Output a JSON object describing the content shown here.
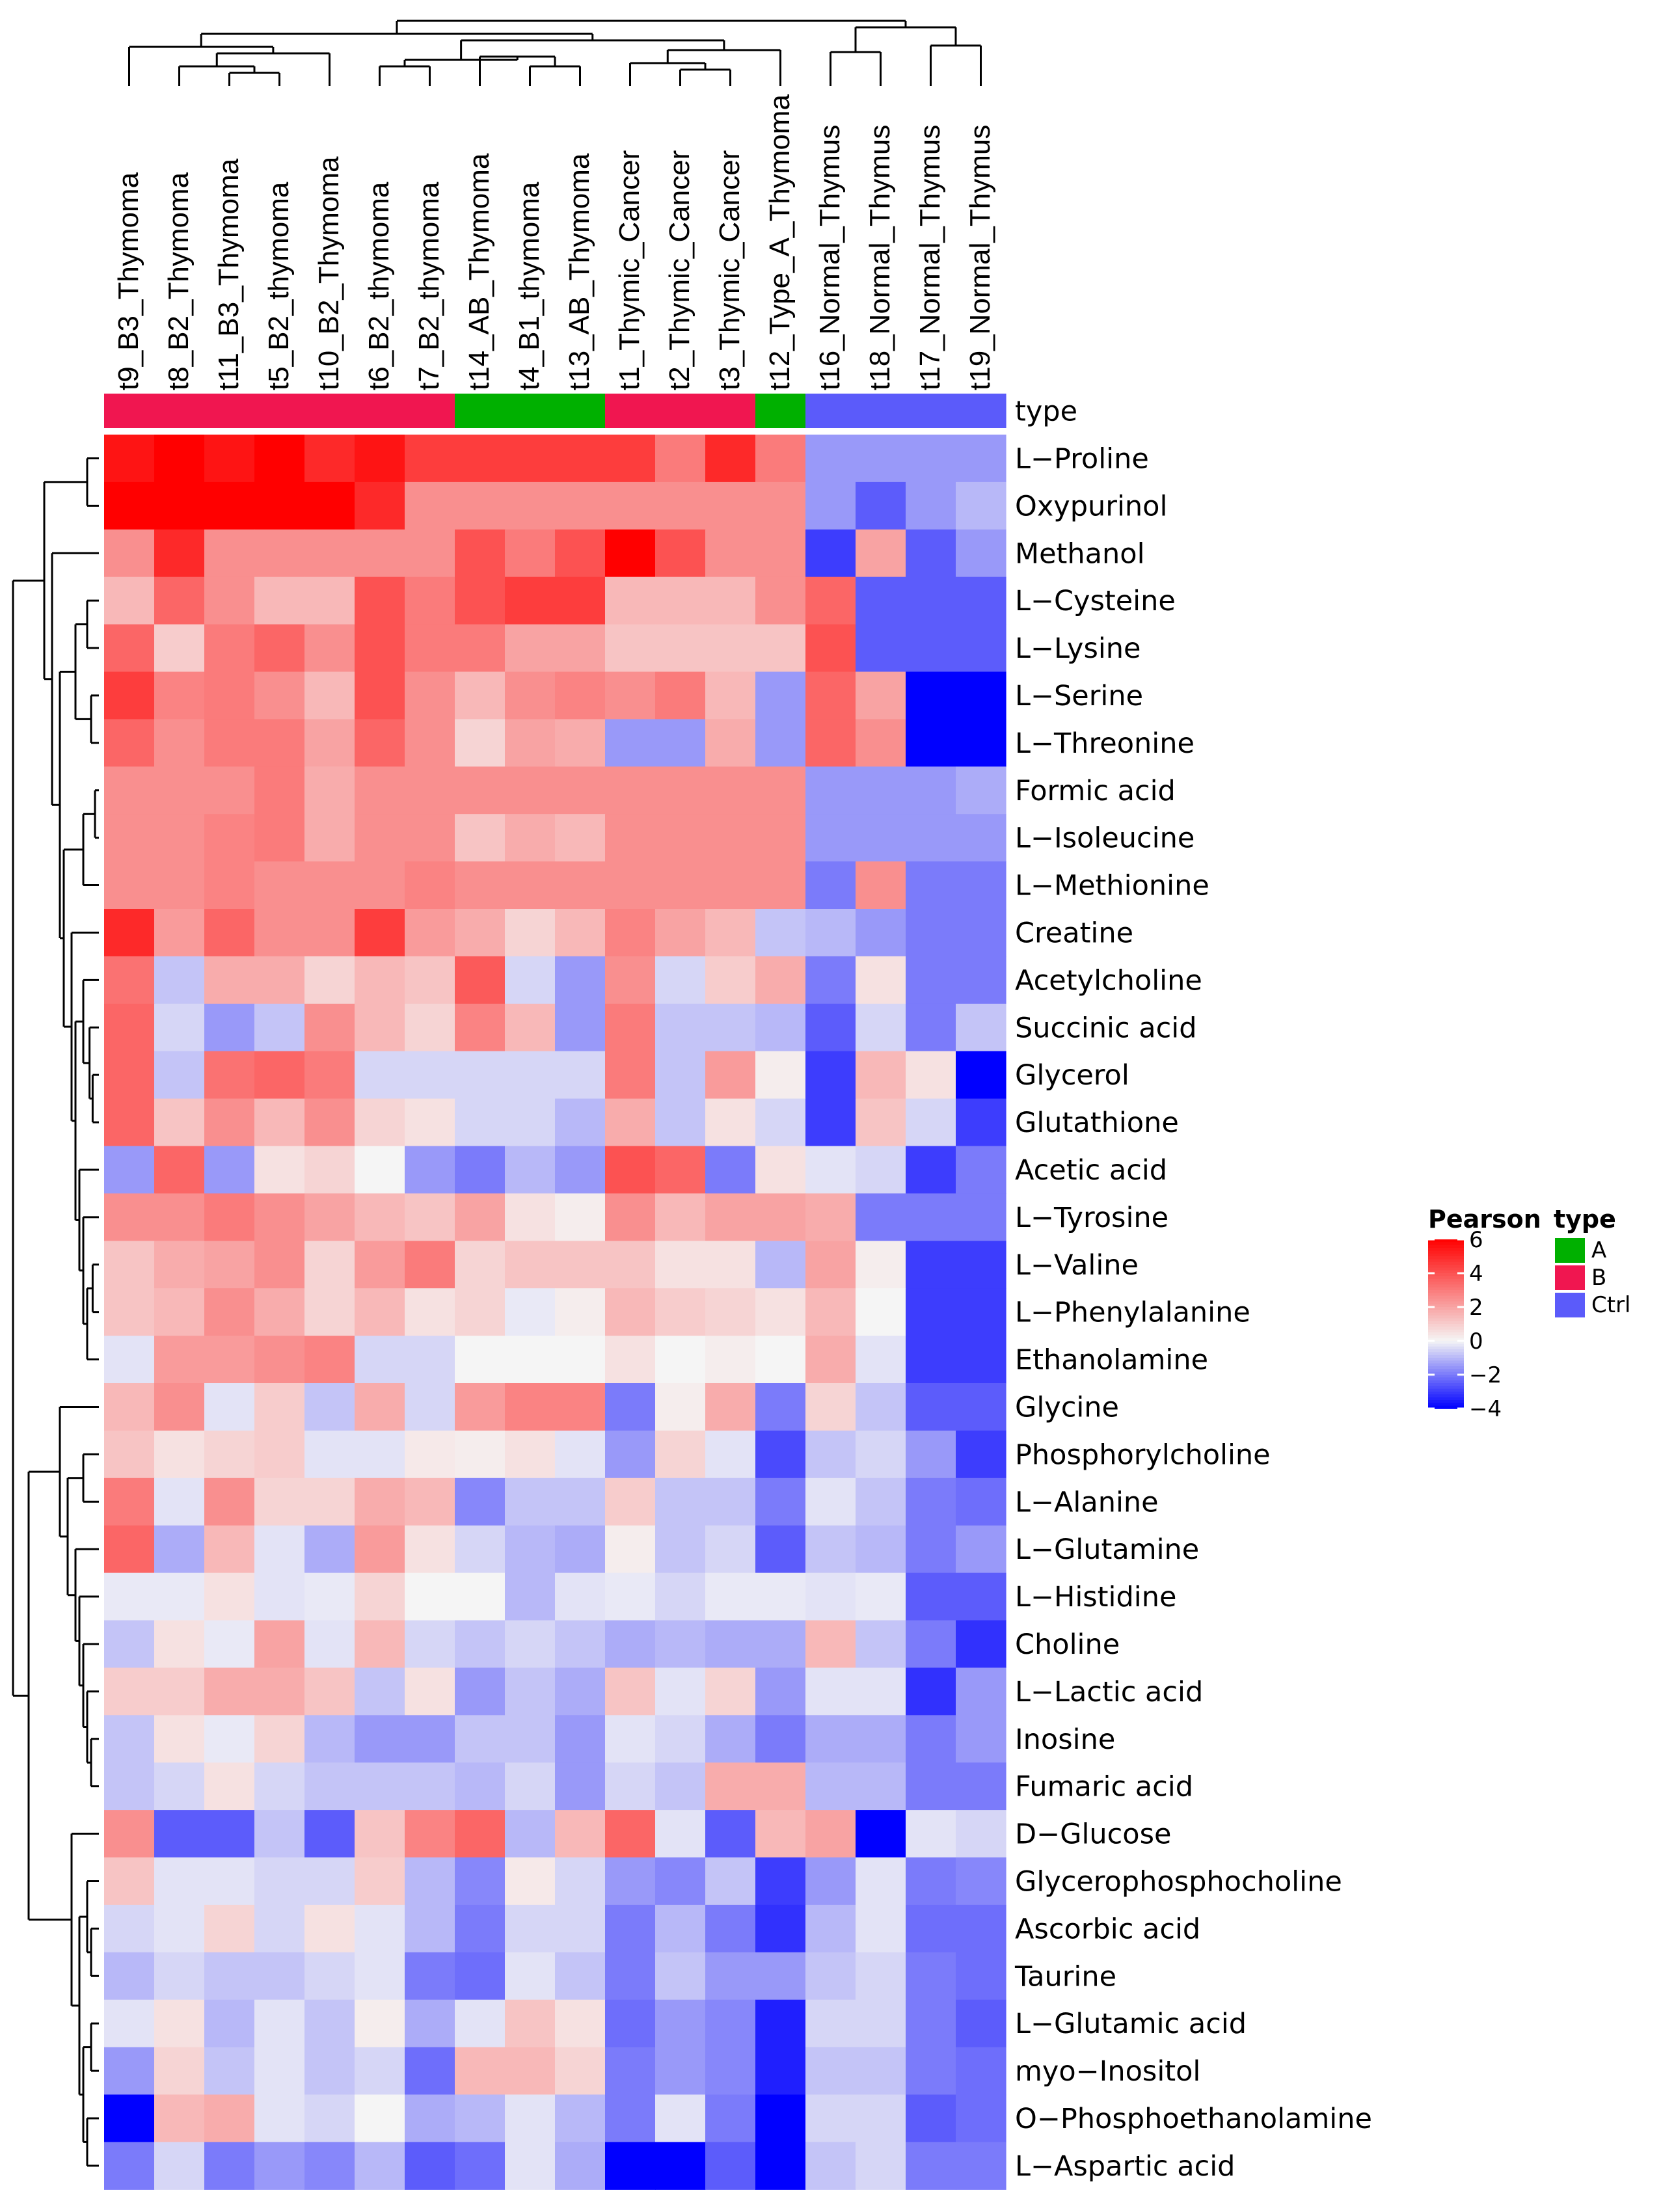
{
  "chart_data": {
    "type": "heatmap",
    "title": "",
    "columns": [
      "t9_B3_Thymoma",
      "t8_B2_Thymoma",
      "t11_B3_Thymoma",
      "t5_B2_thymoma",
      "t10_B2_Thymoma",
      "t6_B2_thymoma",
      "t7_B2_thymoma",
      "t14_AB_Thymoma",
      "t4_B1_thymoma",
      "t13_AB_Thymoma",
      "t1_Thymic_Cancer",
      "t2_Thymic_Cancer",
      "t3_Thymic_Cancer",
      "t12_Type_A_Thymoma",
      "t16_Normal_Thymus",
      "t18_Normal_Thymus",
      "t17_Normal_Thymus",
      "t19_Normal_Thymus"
    ],
    "column_types": [
      "B",
      "B",
      "B",
      "B",
      "B",
      "B",
      "B",
      "A",
      "A",
      "A",
      "B",
      "B",
      "B",
      "A",
      "Ctrl",
      "Ctrl",
      "Ctrl",
      "Ctrl"
    ],
    "annotation_label": "type",
    "rows": [
      "L−Proline",
      "Oxypurinol",
      "Methanol",
      "L−Cysteine",
      "L−Lysine",
      "L−Serine",
      "L−Threonine",
      "Formic acid",
      "L−Isoleucine",
      "L−Methionine",
      "Creatine",
      "Acetylcholine",
      "Succinic acid",
      "Glycerol",
      "Glutathione",
      "Acetic acid",
      "L−Tyrosine",
      "L−Valine",
      "L−Phenylalanine",
      "Ethanolamine",
      "Glycine",
      "Phosphorylcholine",
      "L−Alanine",
      "L−Glutamine",
      "L−Histidine",
      "Choline",
      "L−Lactic acid",
      "Inosine",
      "Fumaric acid",
      "D−Glucose",
      "Glycerophosphocholine",
      "Ascorbic acid",
      "Taurine",
      "L−Glutamic acid",
      "myo−Inositol",
      "O−Phosphoethanolamine",
      "L−Aspartic acid"
    ],
    "values": [
      [
        5.5,
        6,
        5.5,
        6,
        5,
        5.5,
        4.5,
        4.5,
        4.5,
        4.5,
        4.5,
        3,
        5,
        3,
        -1.5,
        -1.5,
        -1.5,
        -1.5
      ],
      [
        6,
        6,
        6,
        6,
        6,
        5,
        2.5,
        2.5,
        2.5,
        2.5,
        2.5,
        2.5,
        2.5,
        2.5,
        -1.5,
        -2.5,
        -1.5,
        -1
      ],
      [
        2.5,
        5,
        2.5,
        2.5,
        2.5,
        2.5,
        2.5,
        4,
        3,
        4,
        6,
        4,
        2.5,
        2.5,
        -3,
        2,
        -2.5,
        -1.5
      ],
      [
        1.5,
        3.5,
        2.5,
        1.5,
        1.5,
        4,
        3,
        4,
        4.5,
        4.5,
        1.5,
        1.5,
        1.5,
        2.5,
        3.5,
        -2.5,
        -2.5,
        -2.5
      ],
      [
        3.5,
        1,
        3,
        3.5,
        2.5,
        4,
        3,
        3,
        2,
        2,
        1.2,
        1.2,
        1.2,
        1.2,
        4,
        -2.5,
        -2.5,
        -2.5
      ],
      [
        4.5,
        2.8,
        3,
        2.5,
        1.5,
        4,
        2.5,
        1.5,
        2.5,
        2.8,
        2.5,
        3,
        1.5,
        -1.5,
        3.5,
        2,
        -4,
        -4
      ],
      [
        3.5,
        2.5,
        3,
        3,
        2,
        3.5,
        2.5,
        0.8,
        2,
        1.8,
        -1.5,
        -1.5,
        1.8,
        -1.5,
        3.5,
        2.5,
        -4,
        -4
      ],
      [
        2.5,
        2.5,
        2.5,
        3,
        1.8,
        2.5,
        2.5,
        2.5,
        2.5,
        2.5,
        2.5,
        2.5,
        2.5,
        2.5,
        -1.5,
        -1.5,
        -1.5,
        -1.2
      ],
      [
        2.5,
        2.5,
        2.8,
        3,
        1.8,
        2.5,
        2.5,
        1.2,
        1.8,
        1.5,
        2.5,
        2.5,
        2.5,
        2.5,
        -1.5,
        -1.5,
        -1.5,
        -1.5
      ],
      [
        2.5,
        2.5,
        2.8,
        2.5,
        2.5,
        2.5,
        2.8,
        2.5,
        2.5,
        2.5,
        2.5,
        2.5,
        2.5,
        2.5,
        -2,
        2.5,
        -2,
        -2
      ],
      [
        5,
        2.2,
        3.5,
        2.5,
        2.5,
        4.5,
        2.2,
        1.8,
        0.8,
        1.5,
        2.8,
        2,
        1.5,
        -0.8,
        -1,
        -1.5,
        -2,
        -2
      ],
      [
        3.2,
        -0.8,
        1.8,
        1.8,
        0.8,
        1.5,
        1.2,
        3.8,
        -0.5,
        -1.5,
        2.5,
        -0.5,
        1,
        1.8,
        -2,
        0.5,
        -2,
        -2
      ],
      [
        3.5,
        -0.5,
        -1.5,
        -0.8,
        2.5,
        1.5,
        0.8,
        2.8,
        1.5,
        -1.5,
        3,
        -0.8,
        -0.8,
        -1,
        -2.5,
        -0.5,
        -2,
        -0.8
      ],
      [
        3.5,
        -0.8,
        3.2,
        3.5,
        3,
        -0.5,
        -0.5,
        -0.5,
        -0.5,
        -0.5,
        3,
        -0.8,
        2.2,
        0.2,
        -3,
        1.5,
        0.5,
        -4
      ],
      [
        3.5,
        1.2,
        2.5,
        1.5,
        2.5,
        0.8,
        0.5,
        -0.5,
        -0.5,
        -1,
        1.8,
        -0.8,
        0.5,
        -0.5,
        -3,
        1.2,
        -0.5,
        -3
      ],
      [
        -1.5,
        3.5,
        -1.5,
        0.5,
        0.8,
        0,
        -1.5,
        -2,
        -1,
        -1.5,
        4,
        3.5,
        -2,
        0.5,
        -0.3,
        -0.5,
        -3,
        -2
      ],
      [
        2.5,
        2.5,
        3,
        2.5,
        2,
        1.5,
        1.2,
        2,
        0.5,
        0.2,
        2.5,
        1.5,
        2,
        2,
        1.8,
        -2,
        -2,
        -2
      ],
      [
        1.2,
        1.8,
        2,
        2.5,
        0.8,
        2.2,
        3,
        0.8,
        1.2,
        1.2,
        1.2,
        0.5,
        0.5,
        -1,
        2,
        0.2,
        -3,
        -3
      ],
      [
        1.2,
        1.5,
        2.5,
        1.8,
        0.8,
        1.5,
        0.5,
        0.8,
        -0.2,
        0.2,
        1.5,
        1,
        0.8,
        0.5,
        1.5,
        0,
        -3,
        -3
      ],
      [
        -0.3,
        2.2,
        2.2,
        2.5,
        2.8,
        -0.5,
        -0.5,
        0,
        0,
        0,
        0.5,
        0,
        0.2,
        0,
        1.8,
        -0.3,
        -3,
        -3
      ],
      [
        1.5,
        2.5,
        -0.3,
        1,
        -0.8,
        1.8,
        -0.5,
        2.2,
        2.8,
        2.8,
        -2,
        0.2,
        1.8,
        -2,
        0.8,
        -0.8,
        -2.5,
        -2.5
      ],
      [
        1.2,
        0.5,
        0.8,
        1,
        -0.3,
        -0.3,
        0.3,
        0.2,
        0.5,
        -0.3,
        -1.5,
        0.8,
        -0.3,
        -2.8,
        -0.8,
        -0.5,
        -1.5,
        -3
      ],
      [
        3,
        -0.3,
        2.5,
        0.8,
        0.8,
        1.8,
        1.5,
        -1.8,
        -0.8,
        -0.8,
        1,
        -0.8,
        -0.8,
        -2,
        -0.3,
        -0.8,
        -2,
        -2.2
      ],
      [
        3.5,
        -1.2,
        1.5,
        -0.3,
        -1.2,
        2.2,
        0.5,
        -0.5,
        -1,
        -1.2,
        0.2,
        -0.8,
        -0.5,
        -2.5,
        -0.8,
        -1,
        -2,
        -1.5
      ],
      [
        -0.2,
        -0.2,
        0.5,
        -0.3,
        -0.2,
        0.8,
        0,
        0,
        -1,
        -0.3,
        -0.2,
        -0.5,
        -0.2,
        -0.2,
        -0.3,
        -0.2,
        -2.5,
        -2.5
      ],
      [
        -0.8,
        0.5,
        -0.2,
        2,
        -0.3,
        1.5,
        -0.5,
        -0.8,
        -0.5,
        -0.8,
        -1.2,
        -1,
        -1.2,
        -1.2,
        1.5,
        -0.8,
        -2,
        -3.2
      ],
      [
        1,
        1,
        1.8,
        1.8,
        1.2,
        -0.8,
        0.5,
        -1.5,
        -0.8,
        -1.2,
        1.2,
        -0.3,
        0.8,
        -1.5,
        -0.3,
        -0.3,
        -3.2,
        -1.5
      ],
      [
        -0.8,
        0.5,
        -0.2,
        0.8,
        -1,
        -1.5,
        -1.5,
        -0.8,
        -0.8,
        -1.5,
        -0.3,
        -0.5,
        -1.2,
        -2,
        -1.2,
        -1.2,
        -2,
        -1.5
      ],
      [
        -0.8,
        -0.5,
        0.5,
        -0.5,
        -0.8,
        -0.8,
        -0.8,
        -1,
        -0.5,
        -1.5,
        -0.5,
        -0.8,
        1.8,
        1.8,
        -1,
        -1,
        -2,
        -2
      ],
      [
        2.5,
        -2.5,
        -2.5,
        -0.8,
        -2.5,
        1.2,
        2.8,
        3.5,
        -1,
        1.5,
        3.5,
        -0.3,
        -2.5,
        1.5,
        2,
        -4,
        -0.3,
        -0.5
      ],
      [
        1.2,
        -0.3,
        -0.3,
        -0.5,
        -0.5,
        1,
        -1,
        -1.8,
        0.3,
        -0.5,
        -1.5,
        -1.8,
        -0.8,
        -3,
        -1.5,
        -0.3,
        -2,
        -1.8
      ],
      [
        -0.5,
        -0.3,
        0.8,
        -0.5,
        0.5,
        -0.3,
        -1,
        -2,
        -0.5,
        -0.5,
        -2,
        -1,
        -2,
        -3.2,
        -1,
        -0.3,
        -2.2,
        -2.2
      ],
      [
        -1,
        -0.5,
        -0.8,
        -0.8,
        -0.5,
        -0.3,
        -2,
        -2.2,
        -0.3,
        -0.8,
        -2,
        -0.8,
        -1.5,
        -1.5,
        -0.8,
        -0.5,
        -2,
        -2.2
      ],
      [
        -0.3,
        0.5,
        -1,
        -0.3,
        -0.8,
        0.2,
        -1.2,
        -0.3,
        1.2,
        0.5,
        -2.2,
        -1.5,
        -1.8,
        -3.5,
        -0.5,
        -0.5,
        -2,
        -2.5
      ],
      [
        -1.5,
        0.8,
        -0.8,
        -0.3,
        -0.8,
        -0.5,
        -2.2,
        1.5,
        1.5,
        0.8,
        -2,
        -1.5,
        -1.8,
        -3.5,
        -0.8,
        -0.8,
        -2,
        -2.2
      ],
      [
        -4,
        1.5,
        1.8,
        -0.3,
        -0.5,
        0,
        -1.2,
        -1,
        -0.3,
        -1,
        -2,
        -0.3,
        -2,
        -4,
        -0.5,
        -0.5,
        -2.5,
        -2.2
      ],
      [
        -2,
        -0.5,
        -2,
        -1.5,
        -1.8,
        -1,
        -2.5,
        -2.2,
        -0.3,
        -1.2,
        -4,
        -4,
        -2.5,
        -4,
        -0.8,
        -0.5,
        -2,
        -2
      ]
    ],
    "color_scale": {
      "min": -4,
      "mid": 0,
      "max": 6,
      "low_color": "#0000ff",
      "mid_color": "#f5f5f5",
      "high_color": "#ff0000"
    },
    "type_colors": {
      "A": "#00b000",
      "B": "#f01650",
      "Ctrl": "#5b5bfa"
    }
  },
  "legend": {
    "pearson_title": "Pearson",
    "pearson_ticks": [
      "6",
      "4",
      "2",
      "0",
      "−2",
      "−4"
    ],
    "pearson_tick_values": [
      6,
      4,
      2,
      0,
      -2,
      -4
    ],
    "type_title": "type",
    "type_entries": [
      "A",
      "B",
      "Ctrl"
    ]
  }
}
